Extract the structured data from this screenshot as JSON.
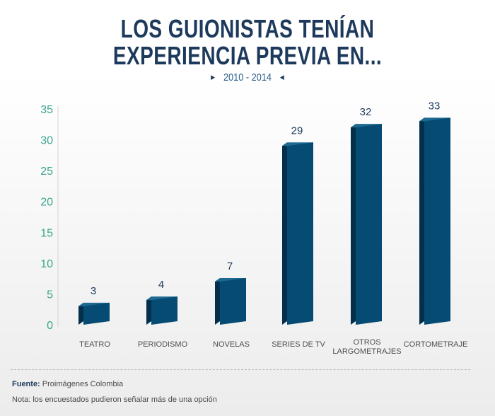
{
  "title_line1": "LOS GUIONISTAS TENÍAN",
  "title_line2": "EXPERIENCIA PREVIA EN...",
  "period": "2010 - 2014",
  "source_label": "Fuente:",
  "source_text": "Proimágenes Colombia",
  "note": "Nota: los encuestados pudieron señalar más de una opción",
  "colors": {
    "bar_front": "#064b73",
    "bar_top": "#1f6a92",
    "bar_side": "#032f4a",
    "axis_labels": "#3aa58c",
    "value_labels": "#1d3a5c"
  },
  "chart_data": {
    "type": "bar",
    "categories": [
      "TEATRO",
      "PERIODISMO",
      "NOVELAS",
      "SERIES DE TV",
      "OTROS LARGOMETRAJES",
      "CORTOMETRAJE"
    ],
    "category_labels": [
      [
        "TEATRO"
      ],
      [
        "PERIODISMO"
      ],
      [
        "NOVELAS"
      ],
      [
        "SERIES DE TV"
      ],
      [
        "OTROS",
        "LARGOMETRAJES"
      ],
      [
        "CORTOMETRAJE"
      ]
    ],
    "values": [
      3,
      4,
      7,
      29,
      32,
      33
    ],
    "yticks": [
      0,
      5,
      10,
      15,
      20,
      25,
      30,
      35
    ],
    "ylim": [
      0,
      35
    ],
    "grid": false,
    "legend": "none"
  }
}
